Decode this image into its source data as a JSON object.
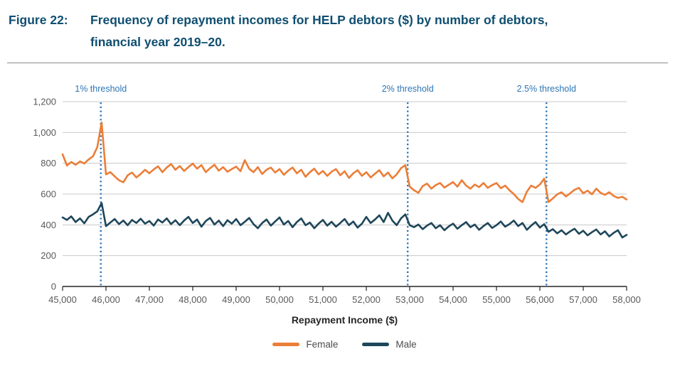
{
  "figure": {
    "label": "Figure 22:",
    "title_line1": "Frequency of repayment incomes for HELP debtors ($) by number of debtors,",
    "title_line2": "financial year 2019–20."
  },
  "colors": {
    "title_text": "#0F4E70",
    "female_line": "#EB7E37",
    "male_line": "#1E465A",
    "threshold_line": "#2E75B6",
    "threshold_label": "#2E75B6",
    "gridline": "#C8C8C8",
    "axis_line": "#262626",
    "tick_label": "#595959",
    "legend_label": "#4d4d4d"
  },
  "chart_data": {
    "type": "line",
    "title": "Frequency of repayment incomes for HELP debtors ($) by number of debtors, financial year 2019–20",
    "xlabel": "Repayment Income ($)",
    "ylabel": "",
    "xlim": [
      45000,
      58000
    ],
    "ylim": [
      0,
      1200
    ],
    "x_tick_step": 1000,
    "y_tick_step": 200,
    "grid": "horizontal",
    "legend_position": "bottom",
    "x_start": 45000,
    "x_step": 100,
    "thresholds": [
      {
        "label": "1% threshold",
        "x": 45881
      },
      {
        "label": "2% threshold",
        "x": 52954
      },
      {
        "label": "2.5% threshold",
        "x": 56152
      }
    ],
    "series": [
      {
        "name": "Female",
        "color": "#EB7E37",
        "values": [
          858,
          785,
          808,
          790,
          812,
          798,
          825,
          845,
          905,
          1065,
          728,
          742,
          715,
          690,
          676,
          722,
          740,
          708,
          730,
          758,
          735,
          760,
          780,
          742,
          772,
          795,
          758,
          782,
          750,
          775,
          798,
          765,
          788,
          742,
          768,
          790,
          752,
          775,
          745,
          762,
          778,
          748,
          820,
          765,
          742,
          775,
          730,
          758,
          772,
          740,
          762,
          725,
          752,
          772,
          735,
          758,
          712,
          742,
          765,
          728,
          750,
          718,
          745,
          762,
          722,
          748,
          705,
          735,
          755,
          718,
          742,
          708,
          732,
          755,
          715,
          740,
          702,
          728,
          768,
          788,
          648,
          625,
          608,
          652,
          668,
          635,
          658,
          672,
          642,
          660,
          678,
          648,
          690,
          655,
          635,
          662,
          645,
          672,
          640,
          658,
          672,
          638,
          655,
          625,
          600,
          568,
          548,
          615,
          655,
          640,
          662,
          700,
          548,
          572,
          598,
          612,
          585,
          605,
          628,
          640,
          605,
          622,
          598,
          635,
          608,
          595,
          612,
          588,
          575,
          582,
          565
        ]
      },
      {
        "name": "Male",
        "color": "#1E465A",
        "values": [
          448,
          432,
          455,
          418,
          442,
          410,
          452,
          468,
          488,
          542,
          392,
          415,
          438,
          405,
          428,
          398,
          432,
          412,
          440,
          408,
          425,
          395,
          435,
          415,
          442,
          405,
          430,
          398,
          428,
          452,
          412,
          435,
          388,
          425,
          445,
          402,
          428,
          392,
          430,
          408,
          438,
          398,
          420,
          445,
          405,
          378,
          412,
          435,
          395,
          422,
          448,
          402,
          425,
          385,
          418,
          442,
          398,
          415,
          378,
          408,
          432,
          395,
          420,
          388,
          412,
          438,
          398,
          422,
          382,
          408,
          452,
          412,
          435,
          462,
          418,
          478,
          428,
          398,
          442,
          468,
          398,
          385,
          402,
          372,
          395,
          412,
          378,
          398,
          365,
          390,
          408,
          375,
          398,
          418,
          385,
          402,
          368,
          392,
          412,
          380,
          398,
          422,
          388,
          405,
          428,
          392,
          412,
          368,
          395,
          418,
          382,
          405,
          355,
          372,
          345,
          365,
          338,
          358,
          375,
          342,
          362,
          332,
          352,
          370,
          338,
          358,
          325,
          348,
          365,
          318,
          335
        ]
      }
    ]
  }
}
